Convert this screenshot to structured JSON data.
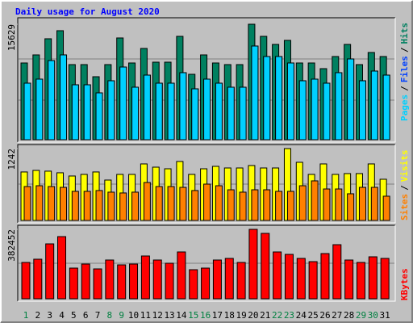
{
  "chart_data": [
    {
      "type": "bar",
      "title": "Daily usage for August 2020",
      "legend_separator": "/",
      "ylim": [
        0,
        15629
      ],
      "yticks": [
        15629
      ],
      "series": [
        {
          "name": "Pages",
          "color": "#00d0ff",
          "values": [
            7651,
            8198,
            10711,
            11477,
            7432,
            7432,
            6339,
            7979,
            9837,
            7105,
            8744,
            7651,
            7651,
            9072,
            6886,
            8198,
            7651,
            7105,
            7105,
            12679,
            11258,
            11258,
            10384,
            7979,
            8198,
            7651,
            9072,
            10930,
            7979,
            9291,
            8744
          ]
        },
        {
          "name": "Files",
          "color": "#0040ff",
          "values": [
            7651,
            8198,
            10711,
            11477,
            7432,
            7432,
            6339,
            7979,
            9837,
            7105,
            8744,
            7651,
            7651,
            9072,
            6886,
            8198,
            7651,
            7105,
            7105,
            12679,
            11258,
            11258,
            10384,
            7979,
            8198,
            7651,
            9072,
            10930,
            7979,
            9291,
            8744
          ]
        },
        {
          "name": "Hits",
          "color": "#008060",
          "values": [
            10384,
            11477,
            13663,
            14756,
            10165,
            10165,
            8525,
            10165,
            13772,
            10384,
            12351,
            10493,
            10493,
            13990,
            8853,
            11477,
            10384,
            10165,
            10165,
            15629,
            13990,
            12897,
            13444,
            10384,
            10384,
            9618,
            11258,
            12897,
            10165,
            11804,
            11258
          ]
        }
      ]
    },
    {
      "type": "bar",
      "legend_separator": "/",
      "ylim": [
        0,
        1242
      ],
      "yticks": [
        1242
      ],
      "series": [
        {
          "name": "Sites",
          "color": "#ff8000",
          "values": [
            586,
            600,
            586,
            572,
            503,
            503,
            517,
            489,
            475,
            489,
            656,
            586,
            586,
            572,
            517,
            628,
            600,
            530,
            489,
            530,
            530,
            503,
            503,
            600,
            684,
            544,
            544,
            461,
            572,
            572,
            419
          ]
        },
        {
          "name": "Visits",
          "color": "#ffff00",
          "values": [
            838,
            865,
            852,
            824,
            768,
            796,
            838,
            698,
            796,
            796,
            977,
            921,
            893,
            1019,
            796,
            893,
            935,
            907,
            907,
            949,
            907,
            907,
            1242,
            1005,
            796,
            977,
            796,
            810,
            810,
            977,
            712
          ]
        }
      ]
    },
    {
      "type": "bar",
      "ylim": [
        0,
        382452
      ],
      "yticks": [
        382452
      ],
      "categories": [
        "1",
        "2",
        "3",
        "4",
        "5",
        "6",
        "7",
        "8",
        "9",
        "10",
        "11",
        "12",
        "13",
        "14",
        "15",
        "16",
        "17",
        "18",
        "19",
        "20",
        "21",
        "22",
        "23",
        "24",
        "25",
        "26",
        "27",
        "28",
        "29",
        "30",
        "31"
      ],
      "weekend": [
        true,
        false,
        false,
        false,
        false,
        false,
        false,
        true,
        true,
        false,
        false,
        false,
        false,
        false,
        true,
        true,
        false,
        false,
        false,
        false,
        false,
        true,
        true,
        false,
        false,
        false,
        false,
        false,
        true,
        true,
        false
      ],
      "weekend_color": "#008040",
      "series": [
        {
          "name": "KBytes",
          "color": "#ff0000",
          "values": [
            200115,
            217903,
            302396,
            342419,
            168986,
            191221,
            164539,
            213456,
            186774,
            191221,
            235691,
            213456,
            195668,
            257926,
            160092,
            168986,
            213456,
            222350,
            200115,
            382452,
            360207,
            257926,
            244585,
            222350,
            204562,
            249032,
            297949,
            213456,
            200115,
            231244,
            222350
          ]
        }
      ]
    }
  ]
}
